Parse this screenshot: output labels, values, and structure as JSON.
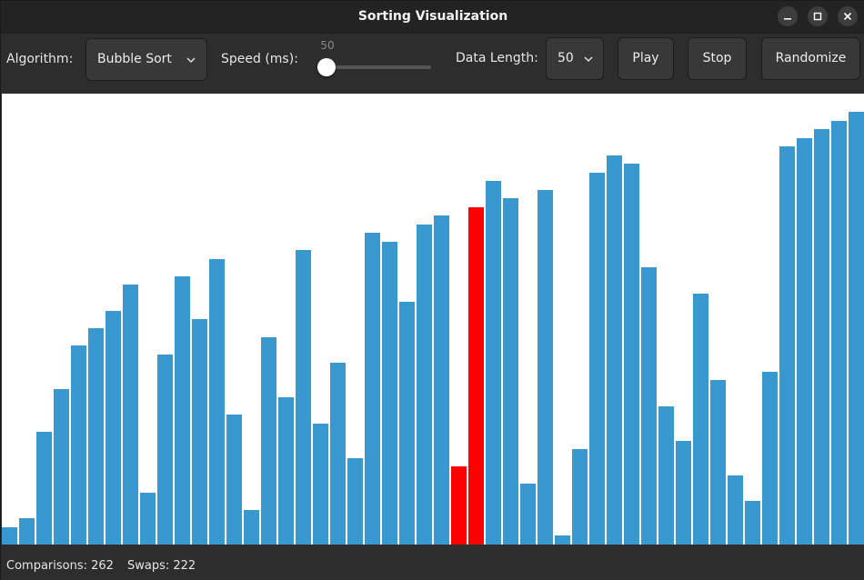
{
  "window": {
    "title": "Sorting Visualization"
  },
  "toolbar": {
    "algorithm_label": "Algorithm:",
    "algorithm_value": "Bubble Sort",
    "speed_label": "Speed (ms):",
    "speed_value": "50",
    "speed_slider_fraction": 0.0,
    "length_label": "Data Length:",
    "length_value": "50",
    "play_label": "Play",
    "stop_label": "Stop",
    "randomize_label": "Randomize"
  },
  "visualization": {
    "colors": {
      "default": "#3a98d0",
      "active": "#ff0000"
    },
    "active_indices": [
      26,
      27
    ],
    "max_value": 500,
    "values": [
      20,
      30,
      130,
      180,
      230,
      250,
      270,
      300,
      60,
      220,
      310,
      260,
      330,
      150,
      40,
      240,
      170,
      340,
      140,
      210,
      100,
      360,
      350,
      280,
      370,
      380,
      90,
      390,
      420,
      400,
      70,
      410,
      10,
      110,
      430,
      450,
      440,
      320,
      160,
      120,
      290,
      190,
      80,
      50,
      200,
      460,
      470,
      480,
      490,
      500
    ]
  },
  "status": {
    "comparisons": "Comparisons: 262",
    "swaps": "Swaps: 222"
  }
}
